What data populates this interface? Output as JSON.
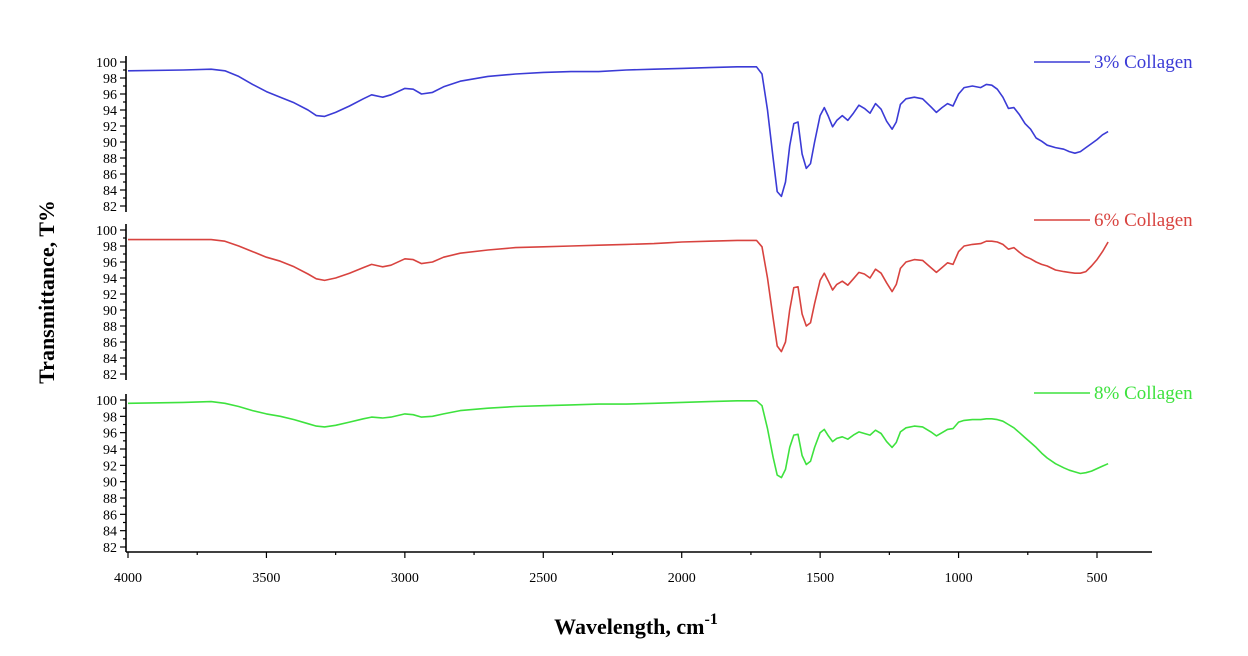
{
  "chart_data": {
    "type": "line",
    "xlabel": "Wavelength, cm",
    "xlabel_superscript": "-1",
    "ylabel": "Transmittance, T%",
    "x_axis": {
      "min": 4000,
      "max": 450,
      "ticks": [
        "4000",
        "3500",
        "3000",
        "2500",
        "2000",
        "1500",
        "1000",
        "500"
      ],
      "tick_values": [
        4000,
        3500,
        3000,
        2500,
        2000,
        1500,
        1000,
        500
      ],
      "reversed": true
    },
    "y_axis": {
      "min": 82,
      "max": 100,
      "ticks": [
        "82",
        "84",
        "86",
        "88",
        "90",
        "92",
        "94",
        "96",
        "98",
        "100"
      ],
      "tick_values": [
        82,
        84,
        86,
        88,
        90,
        92,
        94,
        96,
        98,
        100
      ]
    },
    "grid": false,
    "legend_placement": "right of each panel",
    "series": [
      {
        "name": "3% Collagen",
        "color": "#3b3bd6",
        "points": [
          [
            4000,
            98.9
          ],
          [
            3800,
            99.0
          ],
          [
            3700,
            99.1
          ],
          [
            3650,
            98.9
          ],
          [
            3600,
            98.2
          ],
          [
            3550,
            97.2
          ],
          [
            3500,
            96.3
          ],
          [
            3450,
            95.6
          ],
          [
            3400,
            94.9
          ],
          [
            3350,
            94.0
          ],
          [
            3320,
            93.3
          ],
          [
            3290,
            93.2
          ],
          [
            3250,
            93.7
          ],
          [
            3200,
            94.5
          ],
          [
            3150,
            95.4
          ],
          [
            3120,
            95.9
          ],
          [
            3080,
            95.6
          ],
          [
            3050,
            95.9
          ],
          [
            3000,
            96.7
          ],
          [
            2970,
            96.6
          ],
          [
            2940,
            96.0
          ],
          [
            2900,
            96.2
          ],
          [
            2860,
            96.9
          ],
          [
            2800,
            97.6
          ],
          [
            2700,
            98.2
          ],
          [
            2600,
            98.5
          ],
          [
            2500,
            98.7
          ],
          [
            2400,
            98.8
          ],
          [
            2300,
            98.8
          ],
          [
            2200,
            99.0
          ],
          [
            2100,
            99.1
          ],
          [
            2000,
            99.2
          ],
          [
            1900,
            99.3
          ],
          [
            1800,
            99.4
          ],
          [
            1730,
            99.4
          ],
          [
            1710,
            98.5
          ],
          [
            1690,
            94.0
          ],
          [
            1670,
            88.0
          ],
          [
            1655,
            83.8
          ],
          [
            1640,
            83.2
          ],
          [
            1625,
            85.0
          ],
          [
            1610,
            89.5
          ],
          [
            1595,
            92.3
          ],
          [
            1580,
            92.5
          ],
          [
            1565,
            88.5
          ],
          [
            1550,
            86.7
          ],
          [
            1535,
            87.3
          ],
          [
            1520,
            90.0
          ],
          [
            1500,
            93.3
          ],
          [
            1485,
            94.3
          ],
          [
            1470,
            93.2
          ],
          [
            1455,
            91.9
          ],
          [
            1440,
            92.7
          ],
          [
            1420,
            93.3
          ],
          [
            1400,
            92.7
          ],
          [
            1380,
            93.6
          ],
          [
            1360,
            94.6
          ],
          [
            1340,
            94.2
          ],
          [
            1320,
            93.6
          ],
          [
            1300,
            94.8
          ],
          [
            1280,
            94.1
          ],
          [
            1260,
            92.6
          ],
          [
            1240,
            91.6
          ],
          [
            1225,
            92.5
          ],
          [
            1210,
            94.7
          ],
          [
            1190,
            95.4
          ],
          [
            1160,
            95.6
          ],
          [
            1130,
            95.4
          ],
          [
            1100,
            94.4
          ],
          [
            1080,
            93.7
          ],
          [
            1060,
            94.3
          ],
          [
            1040,
            94.8
          ],
          [
            1020,
            94.5
          ],
          [
            1000,
            96.0
          ],
          [
            980,
            96.8
          ],
          [
            950,
            97.0
          ],
          [
            920,
            96.8
          ],
          [
            900,
            97.2
          ],
          [
            880,
            97.1
          ],
          [
            860,
            96.6
          ],
          [
            840,
            95.6
          ],
          [
            820,
            94.2
          ],
          [
            800,
            94.3
          ],
          [
            780,
            93.4
          ],
          [
            760,
            92.3
          ],
          [
            740,
            91.6
          ],
          [
            720,
            90.5
          ],
          [
            700,
            90.1
          ],
          [
            680,
            89.6
          ],
          [
            650,
            89.3
          ],
          [
            620,
            89.1
          ],
          [
            600,
            88.8
          ],
          [
            580,
            88.6
          ],
          [
            560,
            88.8
          ],
          [
            540,
            89.3
          ],
          [
            520,
            89.8
          ],
          [
            500,
            90.3
          ],
          [
            480,
            90.9
          ],
          [
            460,
            91.3
          ]
        ]
      },
      {
        "name": "6% Collagen",
        "color": "#d8433f",
        "points": [
          [
            4000,
            98.8
          ],
          [
            3800,
            98.8
          ],
          [
            3700,
            98.8
          ],
          [
            3650,
            98.6
          ],
          [
            3600,
            98.0
          ],
          [
            3550,
            97.3
          ],
          [
            3500,
            96.6
          ],
          [
            3450,
            96.1
          ],
          [
            3400,
            95.4
          ],
          [
            3350,
            94.5
          ],
          [
            3320,
            93.9
          ],
          [
            3290,
            93.7
          ],
          [
            3250,
            94.0
          ],
          [
            3200,
            94.6
          ],
          [
            3150,
            95.3
          ],
          [
            3120,
            95.7
          ],
          [
            3080,
            95.4
          ],
          [
            3050,
            95.6
          ],
          [
            3000,
            96.4
          ],
          [
            2970,
            96.3
          ],
          [
            2940,
            95.8
          ],
          [
            2900,
            96.0
          ],
          [
            2860,
            96.6
          ],
          [
            2800,
            97.1
          ],
          [
            2700,
            97.5
          ],
          [
            2600,
            97.8
          ],
          [
            2500,
            97.9
          ],
          [
            2400,
            98.0
          ],
          [
            2300,
            98.1
          ],
          [
            2200,
            98.2
          ],
          [
            2100,
            98.3
          ],
          [
            2050,
            98.4
          ],
          [
            2000,
            98.5
          ],
          [
            1900,
            98.6
          ],
          [
            1800,
            98.7
          ],
          [
            1730,
            98.7
          ],
          [
            1710,
            97.9
          ],
          [
            1690,
            94.0
          ],
          [
            1670,
            89.0
          ],
          [
            1655,
            85.5
          ],
          [
            1640,
            84.8
          ],
          [
            1625,
            86.0
          ],
          [
            1610,
            90.0
          ],
          [
            1595,
            92.8
          ],
          [
            1580,
            92.9
          ],
          [
            1565,
            89.5
          ],
          [
            1550,
            88.0
          ],
          [
            1535,
            88.4
          ],
          [
            1520,
            90.8
          ],
          [
            1500,
            93.7
          ],
          [
            1485,
            94.6
          ],
          [
            1470,
            93.6
          ],
          [
            1455,
            92.5
          ],
          [
            1440,
            93.2
          ],
          [
            1420,
            93.6
          ],
          [
            1400,
            93.1
          ],
          [
            1380,
            93.9
          ],
          [
            1360,
            94.7
          ],
          [
            1340,
            94.5
          ],
          [
            1320,
            94.0
          ],
          [
            1300,
            95.1
          ],
          [
            1280,
            94.6
          ],
          [
            1260,
            93.4
          ],
          [
            1240,
            92.3
          ],
          [
            1225,
            93.2
          ],
          [
            1210,
            95.2
          ],
          [
            1190,
            96.0
          ],
          [
            1160,
            96.3
          ],
          [
            1130,
            96.2
          ],
          [
            1100,
            95.3
          ],
          [
            1080,
            94.7
          ],
          [
            1060,
            95.3
          ],
          [
            1040,
            95.9
          ],
          [
            1020,
            95.7
          ],
          [
            1000,
            97.3
          ],
          [
            980,
            98.0
          ],
          [
            950,
            98.2
          ],
          [
            920,
            98.3
          ],
          [
            900,
            98.6
          ],
          [
            880,
            98.6
          ],
          [
            860,
            98.5
          ],
          [
            840,
            98.2
          ],
          [
            820,
            97.6
          ],
          [
            800,
            97.8
          ],
          [
            780,
            97.2
          ],
          [
            760,
            96.7
          ],
          [
            740,
            96.4
          ],
          [
            720,
            96.0
          ],
          [
            700,
            95.7
          ],
          [
            680,
            95.5
          ],
          [
            650,
            95.0
          ],
          [
            620,
            94.8
          ],
          [
            600,
            94.7
          ],
          [
            580,
            94.6
          ],
          [
            560,
            94.6
          ],
          [
            540,
            94.8
          ],
          [
            520,
            95.5
          ],
          [
            500,
            96.3
          ],
          [
            480,
            97.3
          ],
          [
            460,
            98.5
          ]
        ]
      },
      {
        "name": "8% Collagen",
        "color": "#3ee23e",
        "points": [
          [
            4000,
            99.6
          ],
          [
            3800,
            99.7
          ],
          [
            3700,
            99.8
          ],
          [
            3650,
            99.6
          ],
          [
            3600,
            99.2
          ],
          [
            3550,
            98.7
          ],
          [
            3500,
            98.3
          ],
          [
            3450,
            98.0
          ],
          [
            3400,
            97.6
          ],
          [
            3350,
            97.1
          ],
          [
            3320,
            96.8
          ],
          [
            3290,
            96.7
          ],
          [
            3250,
            96.9
          ],
          [
            3200,
            97.3
          ],
          [
            3150,
            97.7
          ],
          [
            3120,
            97.9
          ],
          [
            3080,
            97.8
          ],
          [
            3050,
            97.9
          ],
          [
            3000,
            98.3
          ],
          [
            2970,
            98.2
          ],
          [
            2940,
            97.9
          ],
          [
            2900,
            98.0
          ],
          [
            2860,
            98.3
          ],
          [
            2800,
            98.7
          ],
          [
            2700,
            99.0
          ],
          [
            2600,
            99.2
          ],
          [
            2500,
            99.3
          ],
          [
            2400,
            99.4
          ],
          [
            2300,
            99.5
          ],
          [
            2200,
            99.5
          ],
          [
            2100,
            99.6
          ],
          [
            2000,
            99.7
          ],
          [
            1900,
            99.8
          ],
          [
            1800,
            99.9
          ],
          [
            1730,
            99.9
          ],
          [
            1710,
            99.3
          ],
          [
            1690,
            96.5
          ],
          [
            1670,
            93.0
          ],
          [
            1655,
            90.8
          ],
          [
            1640,
            90.5
          ],
          [
            1625,
            91.5
          ],
          [
            1610,
            94.2
          ],
          [
            1595,
            95.7
          ],
          [
            1580,
            95.8
          ],
          [
            1565,
            93.2
          ],
          [
            1550,
            92.1
          ],
          [
            1535,
            92.5
          ],
          [
            1520,
            94.2
          ],
          [
            1500,
            96.0
          ],
          [
            1485,
            96.4
          ],
          [
            1470,
            95.6
          ],
          [
            1455,
            94.9
          ],
          [
            1440,
            95.3
          ],
          [
            1420,
            95.5
          ],
          [
            1400,
            95.2
          ],
          [
            1380,
            95.7
          ],
          [
            1360,
            96.1
          ],
          [
            1340,
            95.9
          ],
          [
            1320,
            95.7
          ],
          [
            1300,
            96.3
          ],
          [
            1280,
            95.9
          ],
          [
            1260,
            94.9
          ],
          [
            1240,
            94.2
          ],
          [
            1225,
            94.8
          ],
          [
            1210,
            96.1
          ],
          [
            1190,
            96.6
          ],
          [
            1160,
            96.8
          ],
          [
            1130,
            96.7
          ],
          [
            1100,
            96.1
          ],
          [
            1080,
            95.6
          ],
          [
            1060,
            96.0
          ],
          [
            1040,
            96.4
          ],
          [
            1020,
            96.5
          ],
          [
            1000,
            97.3
          ],
          [
            980,
            97.5
          ],
          [
            950,
            97.6
          ],
          [
            920,
            97.6
          ],
          [
            900,
            97.7
          ],
          [
            880,
            97.7
          ],
          [
            860,
            97.6
          ],
          [
            840,
            97.4
          ],
          [
            820,
            97.0
          ],
          [
            800,
            96.6
          ],
          [
            780,
            96.0
          ],
          [
            760,
            95.4
          ],
          [
            740,
            94.8
          ],
          [
            720,
            94.2
          ],
          [
            700,
            93.5
          ],
          [
            680,
            92.9
          ],
          [
            650,
            92.2
          ],
          [
            620,
            91.7
          ],
          [
            600,
            91.4
          ],
          [
            580,
            91.2
          ],
          [
            560,
            91.0
          ],
          [
            540,
            91.1
          ],
          [
            520,
            91.3
          ],
          [
            500,
            91.6
          ],
          [
            480,
            91.9
          ],
          [
            460,
            92.2
          ]
        ]
      }
    ]
  }
}
